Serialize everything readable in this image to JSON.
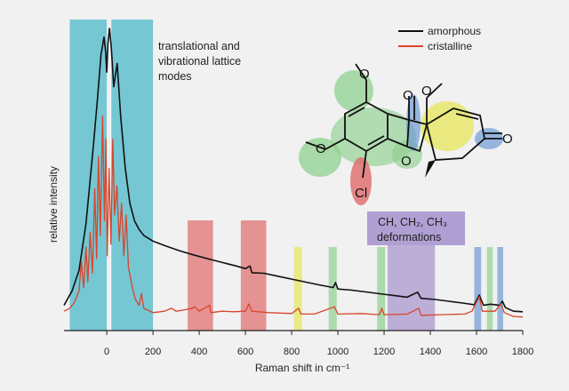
{
  "chart_data": {
    "type": "line",
    "xlabel": "Raman shift in cm⁻¹",
    "ylabel": "relative intensity",
    "xlim": [
      -185,
      1800
    ],
    "x_ticks": [
      0,
      200,
      400,
      600,
      800,
      1000,
      1200,
      1400,
      1600,
      1800
    ],
    "grid": false,
    "legend_position": "top-right",
    "series": [
      {
        "name": "amorphous",
        "color": "#111111",
        "points": [
          [
            -185,
            0.05
          ],
          [
            -150,
            0.1
          ],
          [
            -120,
            0.17
          ],
          [
            -90,
            0.33
          ],
          [
            -60,
            0.58
          ],
          [
            -40,
            0.76
          ],
          [
            -25,
            0.91
          ],
          [
            -12,
            0.97
          ],
          [
            -5,
            0.92
          ],
          [
            0,
            0.85
          ],
          [
            5,
            0.95
          ],
          [
            12,
            1.0
          ],
          [
            20,
            0.93
          ],
          [
            30,
            0.8
          ],
          [
            45,
            0.88
          ],
          [
            60,
            0.7
          ],
          [
            80,
            0.52
          ],
          [
            100,
            0.4
          ],
          [
            120,
            0.34
          ],
          [
            140,
            0.31
          ],
          [
            160,
            0.29
          ],
          [
            180,
            0.28
          ],
          [
            200,
            0.27
          ],
          [
            260,
            0.252
          ],
          [
            320,
            0.236
          ],
          [
            380,
            0.222
          ],
          [
            440,
            0.209
          ],
          [
            500,
            0.197
          ],
          [
            560,
            0.185
          ],
          [
            600,
            0.176
          ],
          [
            620,
            0.185
          ],
          [
            628,
            0.162
          ],
          [
            680,
            0.16
          ],
          [
            740,
            0.15
          ],
          [
            800,
            0.14
          ],
          [
            860,
            0.13
          ],
          [
            920,
            0.12
          ],
          [
            980,
            0.111
          ],
          [
            990,
            0.128
          ],
          [
            1000,
            0.106
          ],
          [
            1060,
            0.102
          ],
          [
            1120,
            0.096
          ],
          [
            1180,
            0.09
          ],
          [
            1240,
            0.084
          ],
          [
            1300,
            0.078
          ],
          [
            1345,
            0.095
          ],
          [
            1360,
            0.074
          ],
          [
            1420,
            0.07
          ],
          [
            1480,
            0.064
          ],
          [
            1540,
            0.058
          ],
          [
            1590,
            0.052
          ],
          [
            1612,
            0.085
          ],
          [
            1630,
            0.05
          ],
          [
            1660,
            0.054
          ],
          [
            1700,
            0.05
          ],
          [
            1712,
            0.064
          ],
          [
            1725,
            0.042
          ],
          [
            1760,
            0.03
          ],
          [
            1800,
            0.028
          ]
        ]
      },
      {
        "name": "cristalline",
        "color": "#d9452b",
        "points": [
          [
            -185,
            0.03
          ],
          [
            -160,
            0.04
          ],
          [
            -140,
            0.06
          ],
          [
            -120,
            0.1
          ],
          [
            -110,
            0.2
          ],
          [
            -100,
            0.11
          ],
          [
            -90,
            0.25
          ],
          [
            -82,
            0.13
          ],
          [
            -72,
            0.3
          ],
          [
            -62,
            0.16
          ],
          [
            -52,
            0.45
          ],
          [
            -44,
            0.21
          ],
          [
            -36,
            0.56
          ],
          [
            -28,
            0.29
          ],
          [
            -18,
            0.7
          ],
          [
            -10,
            0.34
          ],
          [
            -4,
            0.62
          ],
          [
            2,
            0.22
          ],
          [
            10,
            0.52
          ],
          [
            18,
            0.26
          ],
          [
            26,
            0.62
          ],
          [
            34,
            0.36
          ],
          [
            44,
            0.46
          ],
          [
            54,
            0.27
          ],
          [
            64,
            0.4
          ],
          [
            74,
            0.22
          ],
          [
            84,
            0.36
          ],
          [
            94,
            0.18
          ],
          [
            104,
            0.14
          ],
          [
            114,
            0.1
          ],
          [
            124,
            0.07
          ],
          [
            140,
            0.05
          ],
          [
            150,
            0.09
          ],
          [
            160,
            0.04
          ],
          [
            200,
            0.025
          ],
          [
            250,
            0.03
          ],
          [
            280,
            0.04
          ],
          [
            300,
            0.03
          ],
          [
            340,
            0.035
          ],
          [
            370,
            0.04
          ],
          [
            380,
            0.045
          ],
          [
            400,
            0.03
          ],
          [
            445,
            0.05
          ],
          [
            450,
            0.025
          ],
          [
            500,
            0.03
          ],
          [
            550,
            0.028
          ],
          [
            600,
            0.03
          ],
          [
            615,
            0.055
          ],
          [
            628,
            0.03
          ],
          [
            700,
            0.025
          ],
          [
            800,
            0.022
          ],
          [
            830,
            0.04
          ],
          [
            840,
            0.02
          ],
          [
            900,
            0.02
          ],
          [
            985,
            0.045
          ],
          [
            1000,
            0.02
          ],
          [
            1100,
            0.022
          ],
          [
            1180,
            0.018
          ],
          [
            1190,
            0.04
          ],
          [
            1200,
            0.018
          ],
          [
            1300,
            0.02
          ],
          [
            1350,
            0.04
          ],
          [
            1360,
            0.016
          ],
          [
            1450,
            0.018
          ],
          [
            1550,
            0.02
          ],
          [
            1580,
            0.03
          ],
          [
            1612,
            0.08
          ],
          [
            1625,
            0.03
          ],
          [
            1680,
            0.03
          ],
          [
            1705,
            0.055
          ],
          [
            1720,
            0.025
          ],
          [
            1760,
            0.012
          ],
          [
            1800,
            0.01
          ]
        ]
      }
    ],
    "bands": [
      {
        "from": -160,
        "to": 0,
        "color": "#5fbfcf",
        "label_id": "lattice"
      },
      {
        "from": 20,
        "to": 200,
        "color": "#5fbfcf",
        "label_id": "lattice"
      },
      {
        "from": 350,
        "to": 460,
        "color": "#e06a6a"
      },
      {
        "from": 580,
        "to": 690,
        "color": "#e06a6a"
      },
      {
        "from": 810,
        "to": 845,
        "color": "#e6e65a"
      },
      {
        "from": 960,
        "to": 995,
        "color": "#8fd08f"
      },
      {
        "from": 1170,
        "to": 1205,
        "color": "#8fd08f"
      },
      {
        "from": 1215,
        "to": 1420,
        "color": "#a591cc",
        "label_id": "ch"
      },
      {
        "from": 1590,
        "to": 1620,
        "color": "#6f9bd6"
      },
      {
        "from": 1645,
        "to": 1670,
        "color": "#8fd08f"
      },
      {
        "from": 1690,
        "to": 1715,
        "color": "#6f9bd6"
      }
    ],
    "annotations": {
      "lattice": [
        "translational and",
        "vibrational lattice",
        "modes"
      ],
      "ch_line": "CH, CH₂, CH₃",
      "ch_line2": "deformations",
      "molecule_cl": "Cl"
    },
    "colors": {
      "background": "#f1f1f1",
      "axis": "#222222"
    }
  }
}
